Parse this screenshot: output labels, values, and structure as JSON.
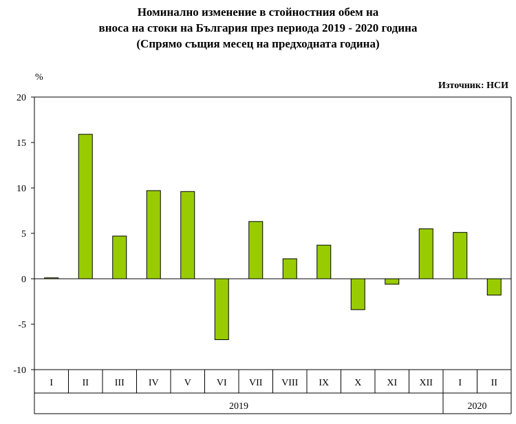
{
  "header": {
    "title_lines": [
      "Номинално изменение в стойностния обем   на",
      "вноса на стоки на България през периода 2019 - 2020 година",
      "(Спрямо същия месец на предходната година)"
    ]
  },
  "chart_data": {
    "type": "bar",
    "unit_label": "%",
    "source_label": "Източник: НСИ",
    "categories": [
      "I",
      "II",
      "III",
      "IV",
      "V",
      "VI",
      "VII",
      "VIII",
      "IX",
      "X",
      "XI",
      "XII",
      "I",
      "II"
    ],
    "values": [
      0.1,
      15.9,
      4.7,
      9.7,
      9.6,
      -6.7,
      6.3,
      2.2,
      3.7,
      -3.4,
      -0.6,
      5.5,
      5.1,
      -1.8
    ],
    "groups": [
      {
        "label": "2019",
        "count": 12
      },
      {
        "label": "2020",
        "count": 2
      }
    ],
    "ylim": [
      -10,
      20
    ],
    "yticks": [
      -10,
      -5,
      0,
      5,
      10,
      15,
      20
    ],
    "bar_color": "#99cc00",
    "bar_stroke": "#000000",
    "grid": false,
    "legend": "none"
  }
}
